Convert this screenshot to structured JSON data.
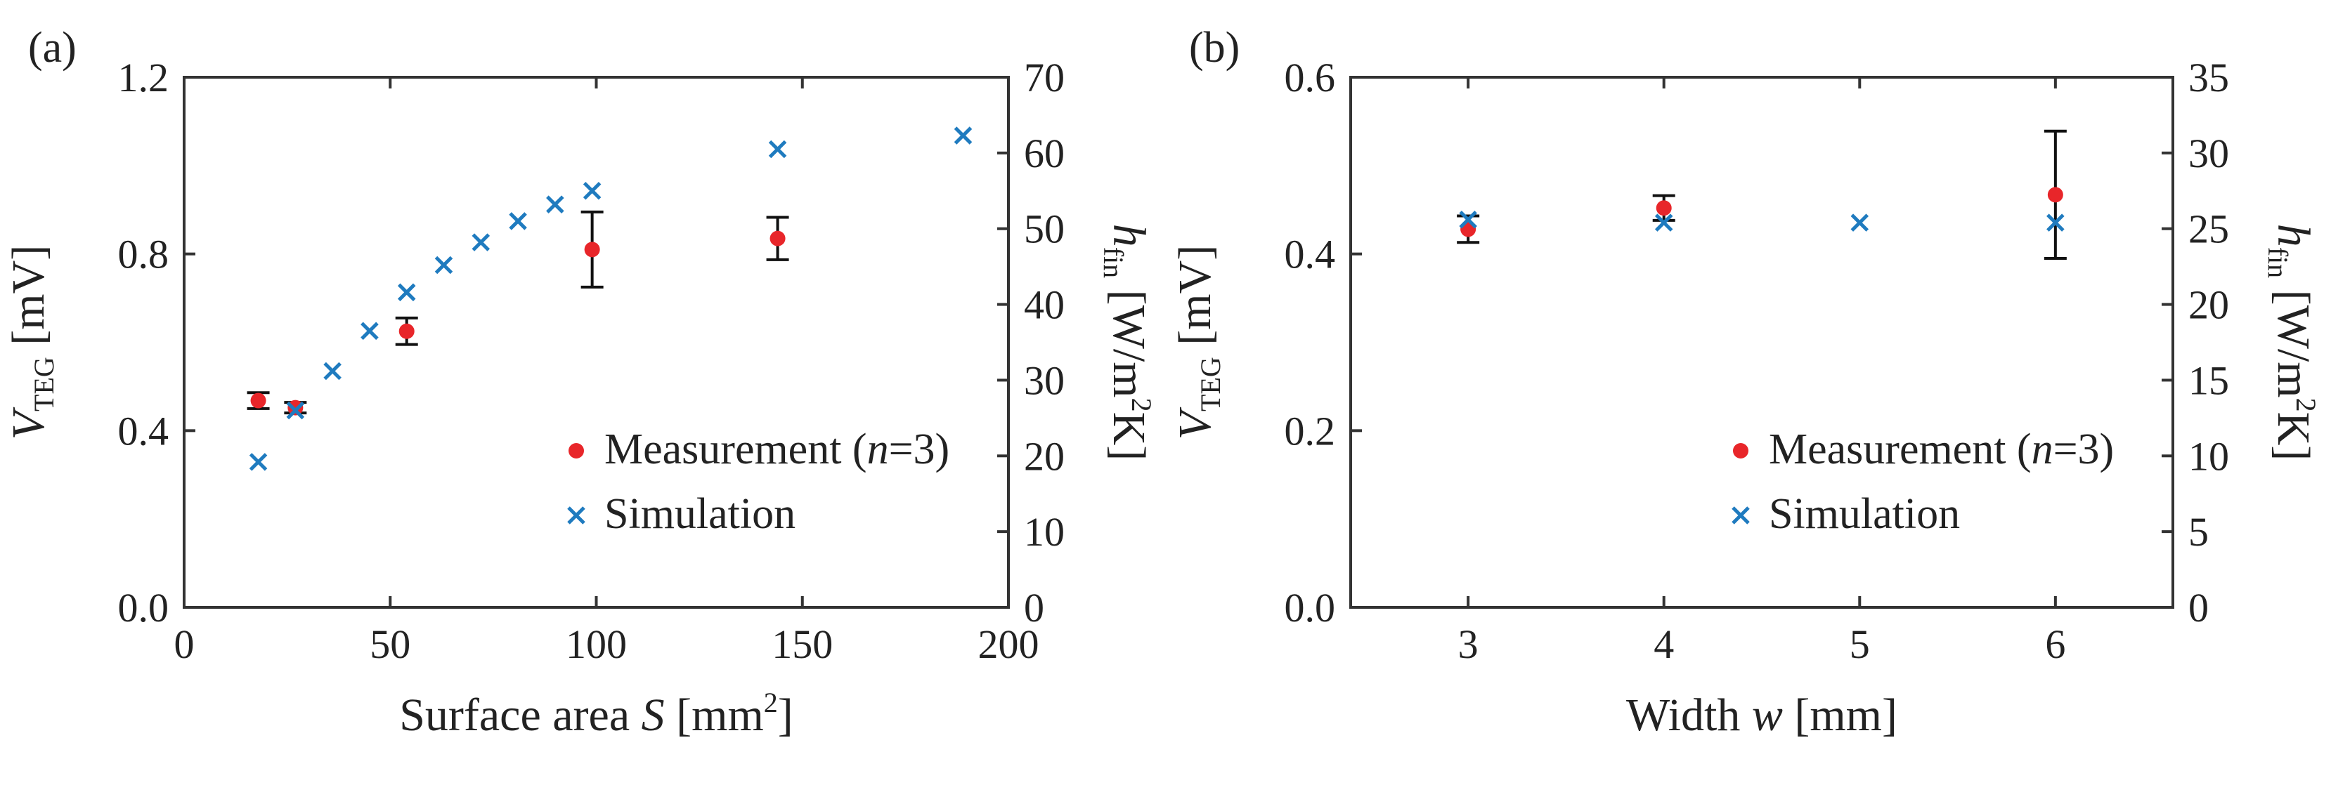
{
  "chart_data": [
    {
      "type": "scatter",
      "panel_label": "(a)",
      "xlabel": {
        "main": "Surface area ",
        "var": "S",
        "unit": " [mm",
        "sup": "2",
        "close": "]"
      },
      "ylabel_left": {
        "var": "V",
        "sub": "TEG",
        "unit": " [mV]"
      },
      "ylabel_right": {
        "var": "h",
        "sub": "fin",
        "unit": " [W/m",
        "sup": "2",
        "close": "K]"
      },
      "xlim": [
        0,
        200
      ],
      "ylim_left": [
        0,
        1.2
      ],
      "ylim_right": [
        0,
        70
      ],
      "x_ticks": [
        "0",
        "50",
        "100",
        "150",
        "200"
      ],
      "y_left_ticks": [
        "0.0",
        "0.4",
        "0.8",
        "1.2"
      ],
      "y_right_ticks": [
        "0",
        "10",
        "20",
        "30",
        "40",
        "50",
        "60",
        "70"
      ],
      "legend_placement": "bottom-right",
      "series": [
        {
          "name": "Measurement (n=3)",
          "legend": {
            "prefix": "Measurement (",
            "var": "n",
            "suffix": "=3)"
          },
          "axis": "left",
          "marker": "dot",
          "color": "#e8262a",
          "x": [
            18,
            27,
            54,
            99,
            144
          ],
          "y": [
            0.468,
            0.452,
            0.625,
            0.81,
            0.835
          ],
          "err": [
            0.018,
            0.012,
            0.03,
            0.085,
            0.048
          ]
        },
        {
          "name": "Simulation",
          "legend": {
            "prefix": "Simulation",
            "var": "",
            "suffix": ""
          },
          "axis": "right",
          "marker": "cross",
          "color": "#1f7bbf",
          "x": [
            18,
            27,
            36,
            45,
            54,
            63,
            72,
            81,
            90,
            99,
            144,
            189
          ],
          "y": [
            19.2,
            26,
            31.2,
            36.5,
            41.6,
            45.2,
            48.2,
            51,
            53.2,
            55,
            60.5,
            62.3
          ]
        }
      ]
    },
    {
      "type": "scatter",
      "panel_label": "(b)",
      "xlabel": {
        "main": "Width ",
        "var": "w",
        "unit": " [mm]",
        "sup": "",
        "close": ""
      },
      "ylabel_left": {
        "var": "V",
        "sub": "TEG",
        "unit": " [mV]"
      },
      "ylabel_right": {
        "var": "h",
        "sub": "fin",
        "unit": " [W/m",
        "sup": "2",
        "close": "K]"
      },
      "xlim": [
        2.4,
        6.6
      ],
      "ylim_left": [
        0,
        0.6
      ],
      "ylim_right": [
        0,
        35
      ],
      "x_ticks": [
        "3",
        "4",
        "5",
        "6"
      ],
      "y_left_ticks": [
        "0.0",
        "0.2",
        "0.4",
        "0.6"
      ],
      "y_right_ticks": [
        "0",
        "5",
        "10",
        "15",
        "20",
        "25",
        "30",
        "35"
      ],
      "legend_placement": "bottom-right",
      "series": [
        {
          "name": "Measurement (n=3)",
          "legend": {
            "prefix": "Measurement (",
            "var": "n",
            "suffix": "=3)"
          },
          "axis": "left",
          "marker": "dot",
          "color": "#e8262a",
          "x": [
            3,
            4,
            6
          ],
          "y": [
            0.428,
            0.452,
            0.467
          ],
          "err": [
            0.015,
            0.014,
            0.072
          ]
        },
        {
          "name": "Simulation",
          "legend": {
            "prefix": "Simulation",
            "var": "",
            "suffix": ""
          },
          "axis": "right",
          "marker": "cross",
          "color": "#1f7bbf",
          "x": [
            3,
            4,
            5,
            6
          ],
          "y": [
            25.6,
            25.4,
            25.4,
            25.4
          ]
        }
      ]
    }
  ]
}
